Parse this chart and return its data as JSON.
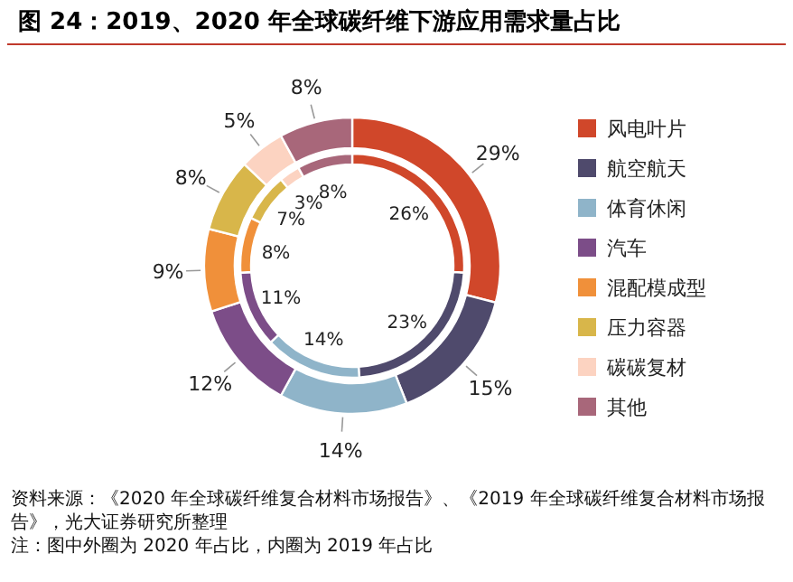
{
  "chart_data": {
    "type": "donut",
    "title": "图 24：2019、2020 年全球碳纤维下游应用需求量占比",
    "categories": [
      "风电叶片",
      "航空航天",
      "体育休闲",
      "汽车",
      "混配模成型",
      "压力容器",
      "碳碳复材",
      "其他"
    ],
    "colors": [
      "#d0472a",
      "#4f4a6c",
      "#8fb4c9",
      "#7c4d88",
      "#f0903a",
      "#d8b64a",
      "#fcd3c1",
      "#a8677a"
    ],
    "series": [
      {
        "values": [
          26,
          23,
          14,
          11,
          8,
          7,
          3,
          8
        ],
        "value_labels": [
          "26%",
          "23%",
          "14%",
          "11%",
          "8%",
          "7%",
          "3%",
          "8%"
        ]
      },
      {
        "values": [
          29,
          15,
          14,
          12,
          9,
          8,
          5,
          8
        ],
        "value_labels": [
          "29%",
          "15%",
          "14%",
          "12%",
          "9%",
          "8%",
          "5%",
          "8%"
        ]
      }
    ],
    "legend": "right",
    "annotations": [
      "资料来源：《2020 年全球碳纤维复合材料市场报告》、《2019 年全球碳纤维复合材料市场报告》，光大证券研究所整理",
      "注：图中外圈为 2020 年占比，内圈为 2019 年占比"
    ]
  }
}
